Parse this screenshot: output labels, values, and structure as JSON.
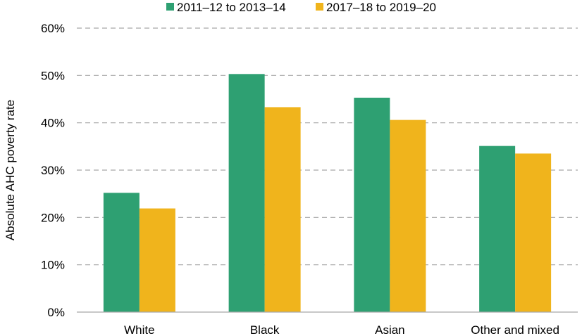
{
  "chart_data": {
    "type": "bar",
    "title": "",
    "xlabel": "",
    "ylabel": "Absolute AHC poverty rate",
    "categories": [
      "White",
      "Black",
      "Asian",
      "Other and mixed"
    ],
    "series": [
      {
        "name": "2011–12 to 2013–14",
        "color": "#2ea072",
        "values": [
          25.2,
          50.3,
          45.3,
          35.1
        ]
      },
      {
        "name": "2017–18 to 2019–20",
        "color": "#f0b41c",
        "values": [
          21.9,
          43.3,
          40.6,
          33.5
        ]
      }
    ],
    "ylim": [
      0,
      60
    ],
    "yticks": [
      0,
      10,
      20,
      30,
      40,
      50,
      60
    ],
    "ytick_labels": [
      "0%",
      "10%",
      "20%",
      "30%",
      "40%",
      "50%",
      "60%"
    ],
    "grid": true,
    "legend_position": "top"
  }
}
